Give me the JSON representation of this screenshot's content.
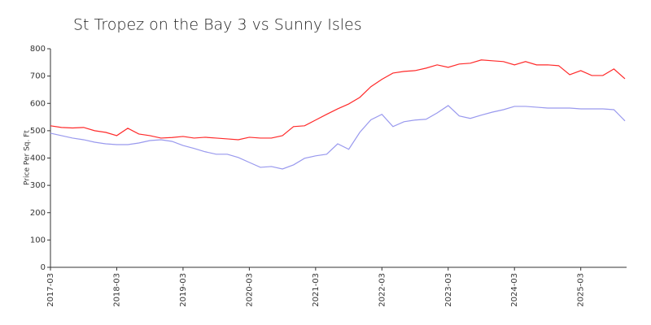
{
  "chart_data": {
    "type": "line",
    "title": "St Tropez on the Bay 3 vs Sunny Isles",
    "ylabel": "Price Per Sq. Ft",
    "x": [
      "2017-03",
      "2017-05",
      "2017-07",
      "2017-09",
      "2017-11",
      "2018-01",
      "2018-03",
      "2018-05",
      "2018-07",
      "2018-09",
      "2018-11",
      "2019-01",
      "2019-03",
      "2019-05",
      "2019-07",
      "2019-09",
      "2019-11",
      "2020-01",
      "2020-03",
      "2020-05",
      "2020-07",
      "2020-09",
      "2020-11",
      "2021-01",
      "2021-03",
      "2021-05",
      "2021-07",
      "2021-09",
      "2021-11",
      "2022-01",
      "2022-03",
      "2022-05",
      "2022-07",
      "2022-09",
      "2022-11",
      "2023-01",
      "2023-03",
      "2023-05",
      "2023-07",
      "2023-09",
      "2023-11",
      "2024-01",
      "2024-03",
      "2024-05",
      "2024-07",
      "2024-09",
      "2024-11",
      "2025-01",
      "2025-03",
      "2025-05",
      "2025-07",
      "2025-09",
      "2025-11"
    ],
    "series": [
      {
        "color": "#ff2a2a",
        "values": [
          518,
          512,
          510,
          512,
          500,
          494,
          482,
          509,
          488,
          482,
          473,
          475,
          479,
          473,
          476,
          473,
          470,
          467,
          476,
          473,
          473,
          482,
          515,
          518,
          539,
          560,
          580,
          598,
          622,
          661,
          688,
          711,
          717,
          720,
          729,
          741,
          732,
          744,
          747,
          759,
          756,
          753,
          741,
          753,
          741,
          741,
          738,
          705,
          720,
          702,
          702,
          726,
          690
        ]
      },
      {
        "color": "#9999ee",
        "values": [
          491,
          482,
          473,
          467,
          458,
          452,
          449,
          449,
          455,
          464,
          467,
          461,
          446,
          435,
          423,
          414,
          414,
          402,
          384,
          366,
          369,
          360,
          375,
          399,
          408,
          414,
          452,
          432,
          494,
          540,
          560,
          515,
          533,
          539,
          542,
          565,
          592,
          554,
          545,
          557,
          568,
          577,
          589,
          589,
          586,
          583,
          583,
          583,
          580,
          580,
          580,
          577,
          536
        ]
      }
    ],
    "xlim": [
      "2017-03",
      "2025-11"
    ],
    "xticks": [
      "2017-03",
      "2018-03",
      "2019-03",
      "2020-03",
      "2021-03",
      "2022-03",
      "2023-03",
      "2024-03",
      "2025-03"
    ],
    "ylim": [
      0,
      800
    ],
    "yticks": [
      0,
      100,
      200,
      300,
      400,
      500,
      600,
      700,
      800
    ],
    "grid": false
  }
}
